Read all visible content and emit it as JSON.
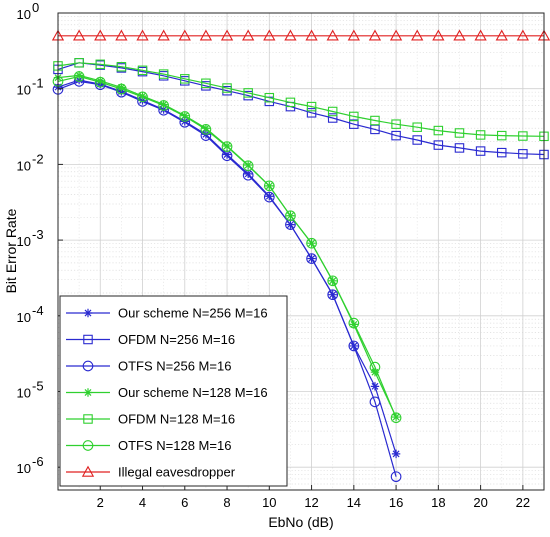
{
  "chart_data": {
    "type": "line",
    "title": "",
    "xlabel": "EbNo (dB)",
    "ylabel": "Bit Error Rate",
    "xlim": [
      0,
      23
    ],
    "ylim": [
      5e-07,
      1
    ],
    "yscale": "log",
    "grid": true,
    "minor_grid": true,
    "legend_position": "bottom-left",
    "x_ticks": [
      2,
      4,
      6,
      8,
      10,
      12,
      14,
      16,
      18,
      20,
      22
    ],
    "y_ticks": [
      {
        "value": 1,
        "base": "10",
        "exp": "0"
      },
      {
        "value": 0.1,
        "base": "10",
        "exp": "-1"
      },
      {
        "value": 0.01,
        "base": "10",
        "exp": "-2"
      },
      {
        "value": 0.001,
        "base": "10",
        "exp": "-3"
      },
      {
        "value": 0.0001,
        "base": "10",
        "exp": "-4"
      },
      {
        "value": 1e-05,
        "base": "10",
        "exp": "-5"
      },
      {
        "value": 1e-06,
        "base": "10",
        "exp": "-6"
      }
    ],
    "series": [
      {
        "name": "Our scheme N=256 M=16",
        "color": "#2a2ad0",
        "marker": "star",
        "x": [
          0,
          1,
          2,
          3,
          4,
          5,
          6,
          7,
          8,
          9,
          10,
          11,
          12,
          13,
          14,
          15,
          16
        ],
        "y": [
          0.105,
          0.13,
          0.115,
          0.092,
          0.07,
          0.053,
          0.037,
          0.025,
          0.0135,
          0.0075,
          0.0038,
          0.0016,
          0.00057,
          0.00019,
          4e-05,
          1.17e-05,
          1.5e-06
        ]
      },
      {
        "name": "OFDM N=256 M=16",
        "color": "#2a2ad0",
        "marker": "square",
        "x": [
          0,
          1,
          2,
          3,
          4,
          5,
          6,
          7,
          8,
          9,
          10,
          11,
          12,
          13,
          14,
          15,
          16,
          17,
          18,
          19,
          20,
          21,
          22,
          23
        ],
        "y": [
          0.18,
          0.22,
          0.205,
          0.188,
          0.168,
          0.148,
          0.127,
          0.109,
          0.094,
          0.081,
          0.068,
          0.058,
          0.048,
          0.041,
          0.034,
          0.029,
          0.024,
          0.021,
          0.018,
          0.0165,
          0.015,
          0.0143,
          0.0138,
          0.0135
        ]
      },
      {
        "name": "OTFS N=256 M=16",
        "color": "#2a2ad0",
        "marker": "circle",
        "x": [
          0,
          1,
          2,
          3,
          4,
          5,
          6,
          7,
          8,
          9,
          10,
          11,
          12,
          13,
          14,
          15,
          16
        ],
        "y": [
          0.098,
          0.125,
          0.113,
          0.09,
          0.068,
          0.052,
          0.036,
          0.024,
          0.013,
          0.0072,
          0.0037,
          0.0016,
          0.00057,
          0.00019,
          4e-05,
          7.3e-06,
          7.5e-07
        ]
      },
      {
        "name": "Our scheme N=128 M=16",
        "color": "#2fd02f",
        "marker": "star",
        "x": [
          0,
          1,
          2,
          3,
          4,
          5,
          6,
          7,
          8,
          9,
          10,
          11,
          12,
          13,
          14,
          15,
          16
        ],
        "y": [
          0.14,
          0.15,
          0.127,
          0.104,
          0.08,
          0.062,
          0.044,
          0.03,
          0.0175,
          0.0098,
          0.0052,
          0.0021,
          0.00091,
          0.00029,
          7.7e-05,
          1.8e-05,
          4.6e-06
        ]
      },
      {
        "name": "OFDM N=128 M=16",
        "color": "#2fd02f",
        "marker": "square",
        "x": [
          0,
          1,
          2,
          3,
          4,
          5,
          6,
          7,
          8,
          9,
          10,
          11,
          12,
          13,
          14,
          15,
          16,
          17,
          18,
          19,
          20,
          21,
          22,
          23
        ],
        "y": [
          0.2,
          0.22,
          0.21,
          0.195,
          0.175,
          0.156,
          0.135,
          0.118,
          0.102,
          0.088,
          0.076,
          0.066,
          0.058,
          0.05,
          0.043,
          0.038,
          0.034,
          0.031,
          0.028,
          0.026,
          0.0245,
          0.024,
          0.0237,
          0.0235
        ]
      },
      {
        "name": "OTFS N=128 M=16",
        "color": "#2fd02f",
        "marker": "circle",
        "x": [
          0,
          1,
          2,
          3,
          4,
          5,
          6,
          7,
          8,
          9,
          10,
          11,
          12,
          13,
          14,
          15,
          16
        ],
        "y": [
          0.125,
          0.145,
          0.122,
          0.099,
          0.078,
          0.06,
          0.043,
          0.029,
          0.0172,
          0.0096,
          0.0052,
          0.0021,
          0.00091,
          0.00029,
          8e-05,
          2.1e-05,
          4.5e-06
        ]
      },
      {
        "name": "Illegal eavesdropper",
        "color": "#e02020",
        "marker": "triangle",
        "x": [
          0,
          1,
          2,
          3,
          4,
          5,
          6,
          7,
          8,
          9,
          10,
          11,
          12,
          13,
          14,
          15,
          16,
          17,
          18,
          19,
          20,
          21,
          22,
          23
        ],
        "y": [
          0.5,
          0.5,
          0.5,
          0.5,
          0.5,
          0.5,
          0.5,
          0.5,
          0.5,
          0.5,
          0.5,
          0.5,
          0.5,
          0.5,
          0.5,
          0.5,
          0.5,
          0.5,
          0.5,
          0.5,
          0.5,
          0.5,
          0.5,
          0.5
        ]
      }
    ]
  }
}
